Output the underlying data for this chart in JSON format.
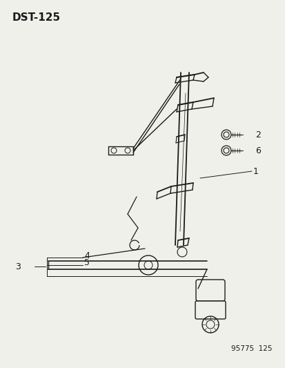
{
  "title": "DST-125",
  "footer": "95775  125",
  "bg_color": "#f0f0eb",
  "line_color": "#1a1a1a",
  "title_fontsize": 11,
  "footer_fontsize": 7.5,
  "label_fontsize": 9,
  "fig_width": 4.14,
  "fig_height": 5.33,
  "dpi": 100
}
